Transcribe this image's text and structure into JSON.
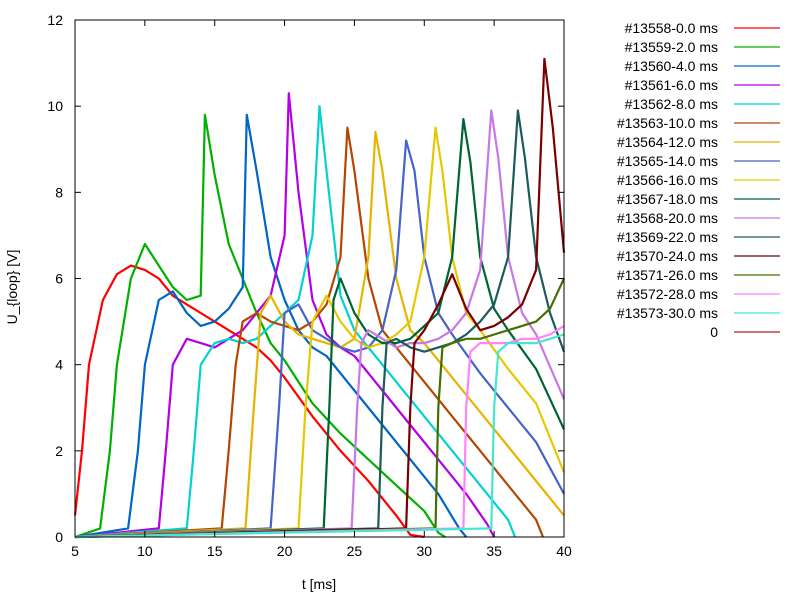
{
  "chart_data": {
    "type": "line",
    "title": "",
    "xlabel": "t [ms]",
    "ylabel": "U_{loop} [V]",
    "xlim": [
      5,
      40
    ],
    "ylim": [
      0,
      12
    ],
    "x_ticks": [
      5,
      10,
      15,
      20,
      25,
      30,
      35,
      40
    ],
    "y_ticks": [
      0,
      2,
      4,
      6,
      8,
      10,
      12
    ],
    "grid": false,
    "legend_position": "outside-right",
    "series": [
      {
        "name": "#13558-0.0 ms",
        "color": "#ff0000",
        "points": [
          [
            5,
            0.5
          ],
          [
            5.5,
            2
          ],
          [
            6,
            4
          ],
          [
            7,
            5.5
          ],
          [
            8,
            6.1
          ],
          [
            9,
            6.3
          ],
          [
            10,
            6.2
          ],
          [
            11,
            6.0
          ],
          [
            12,
            5.6
          ],
          [
            13,
            5.4
          ],
          [
            14,
            5.2
          ],
          [
            15,
            5.0
          ],
          [
            16,
            4.8
          ],
          [
            17,
            4.6
          ],
          [
            18,
            4.4
          ],
          [
            19,
            4.1
          ],
          [
            20,
            3.7
          ],
          [
            22,
            2.8
          ],
          [
            24,
            2.0
          ],
          [
            26,
            1.3
          ],
          [
            28,
            0.5
          ],
          [
            29,
            0.05
          ],
          [
            30,
            0
          ]
        ]
      },
      {
        "name": "#13559-2.0 ms",
        "color": "#00b000",
        "points": [
          [
            5,
            0
          ],
          [
            6.8,
            0.2
          ],
          [
            7.5,
            2
          ],
          [
            8,
            4
          ],
          [
            9,
            6
          ],
          [
            10,
            6.8
          ],
          [
            11,
            6.3
          ],
          [
            12,
            5.8
          ],
          [
            13,
            5.5
          ],
          [
            14,
            5.6
          ],
          [
            14.3,
            9.8
          ],
          [
            15,
            8.4
          ],
          [
            16,
            6.8
          ],
          [
            17,
            6.0
          ],
          [
            18,
            5.2
          ],
          [
            19,
            4.5
          ],
          [
            20,
            4.1
          ],
          [
            21,
            3.6
          ],
          [
            22,
            3.1
          ],
          [
            24,
            2.4
          ],
          [
            26,
            1.8
          ],
          [
            28,
            1.2
          ],
          [
            30,
            0.6
          ],
          [
            31,
            0.1
          ],
          [
            31.5,
            0
          ]
        ]
      },
      {
        "name": "#13560-4.0 ms",
        "color": "#0064c8",
        "points": [
          [
            5,
            0
          ],
          [
            8.8,
            0.2
          ],
          [
            9.5,
            2
          ],
          [
            10,
            4
          ],
          [
            11,
            5.5
          ],
          [
            12,
            5.7
          ],
          [
            13,
            5.2
          ],
          [
            14,
            4.9
          ],
          [
            15,
            5.0
          ],
          [
            16,
            5.3
          ],
          [
            17,
            5.8
          ],
          [
            17.3,
            9.8
          ],
          [
            18,
            8.5
          ],
          [
            19,
            6.5
          ],
          [
            20,
            5.5
          ],
          [
            21,
            4.8
          ],
          [
            22,
            4.4
          ],
          [
            23,
            4.2
          ],
          [
            25,
            3.4
          ],
          [
            27,
            2.6
          ],
          [
            29,
            1.8
          ],
          [
            31,
            1.0
          ],
          [
            32.5,
            0.2
          ],
          [
            33,
            0
          ]
        ]
      },
      {
        "name": "#13561-6.0 ms",
        "color": "#b400e6",
        "points": [
          [
            5,
            0
          ],
          [
            11,
            0.2
          ],
          [
            11.5,
            2
          ],
          [
            12,
            4
          ],
          [
            13,
            4.6
          ],
          [
            14,
            4.5
          ],
          [
            15,
            4.4
          ],
          [
            16,
            4.6
          ],
          [
            17,
            4.8
          ],
          [
            18,
            5.2
          ],
          [
            19,
            5.6
          ],
          [
            20,
            7.0
          ],
          [
            20.3,
            10.3
          ],
          [
            21,
            8.0
          ],
          [
            22,
            5.5
          ],
          [
            23,
            4.7
          ],
          [
            24,
            4.4
          ],
          [
            25,
            4.2
          ],
          [
            27,
            3.4
          ],
          [
            29,
            2.6
          ],
          [
            31,
            1.8
          ],
          [
            33,
            1.0
          ],
          [
            34.5,
            0.3
          ],
          [
            35,
            0
          ]
        ]
      },
      {
        "name": "#13562-8.0 ms",
        "color": "#00d2d2",
        "points": [
          [
            5,
            0
          ],
          [
            13,
            0.2
          ],
          [
            13.5,
            2
          ],
          [
            14,
            4
          ],
          [
            15,
            4.5
          ],
          [
            16,
            4.6
          ],
          [
            17,
            4.5
          ],
          [
            18,
            4.6
          ],
          [
            19,
            4.9
          ],
          [
            20,
            5.2
          ],
          [
            21,
            5.5
          ],
          [
            22,
            7.0
          ],
          [
            22.5,
            10.0
          ],
          [
            23,
            8.5
          ],
          [
            24,
            5.6
          ],
          [
            25,
            4.8
          ],
          [
            26,
            4.4
          ],
          [
            28,
            3.6
          ],
          [
            30,
            2.8
          ],
          [
            32,
            2.0
          ],
          [
            34,
            1.2
          ],
          [
            36,
            0.4
          ],
          [
            36.5,
            0
          ]
        ]
      },
      {
        "name": "#13563-10.0 ms",
        "color": "#b44600",
        "points": [
          [
            5,
            0
          ],
          [
            15.5,
            0.2
          ],
          [
            16,
            2
          ],
          [
            16.5,
            4
          ],
          [
            17,
            5.0
          ],
          [
            18,
            5.2
          ],
          [
            19,
            5.0
          ],
          [
            20,
            4.9
          ],
          [
            21,
            4.8
          ],
          [
            22,
            5.0
          ],
          [
            23,
            5.4
          ],
          [
            24,
            6.5
          ],
          [
            24.5,
            9.5
          ],
          [
            25,
            8.5
          ],
          [
            26,
            6.0
          ],
          [
            27,
            4.8
          ],
          [
            28,
            4.4
          ],
          [
            30,
            3.6
          ],
          [
            32,
            2.8
          ],
          [
            34,
            2.0
          ],
          [
            36,
            1.2
          ],
          [
            38,
            0.4
          ],
          [
            38.5,
            0
          ]
        ]
      },
      {
        "name": "#13564-12.0 ms",
        "color": "#e6b400",
        "points": [
          [
            5,
            0
          ],
          [
            17.2,
            0.2
          ],
          [
            17.8,
            3
          ],
          [
            18.3,
            5.2
          ],
          [
            19,
            5.6
          ],
          [
            20,
            5.0
          ],
          [
            21,
            4.7
          ],
          [
            22,
            4.6
          ],
          [
            23,
            4.5
          ],
          [
            24,
            4.4
          ],
          [
            25,
            4.6
          ],
          [
            26,
            6.5
          ],
          [
            26.5,
            9.4
          ],
          [
            27,
            8.5
          ],
          [
            28,
            6.0
          ],
          [
            29,
            4.8
          ],
          [
            30,
            4.5
          ],
          [
            32,
            3.7
          ],
          [
            34,
            2.9
          ],
          [
            36,
            2.1
          ],
          [
            38,
            1.3
          ],
          [
            40,
            0.5
          ]
        ]
      },
      {
        "name": "#13565-14.0 ms",
        "color": "#4664c8",
        "points": [
          [
            5,
            0
          ],
          [
            19,
            0.2
          ],
          [
            19.6,
            3
          ],
          [
            20,
            5.2
          ],
          [
            21,
            5.4
          ],
          [
            22,
            4.8
          ],
          [
            23,
            4.6
          ],
          [
            24,
            4.4
          ],
          [
            25,
            4.3
          ],
          [
            26,
            4.4
          ],
          [
            27,
            4.8
          ],
          [
            28,
            6.2
          ],
          [
            28.7,
            9.2
          ],
          [
            29.3,
            8.5
          ],
          [
            30,
            6.5
          ],
          [
            31,
            5.2
          ],
          [
            32,
            4.7
          ],
          [
            34,
            3.8
          ],
          [
            36,
            3.0
          ],
          [
            38,
            2.2
          ],
          [
            40,
            1.0
          ]
        ]
      },
      {
        "name": "#13566-16.0 ms",
        "color": "#e6c800",
        "points": [
          [
            5,
            0
          ],
          [
            21,
            0.2
          ],
          [
            21.5,
            3
          ],
          [
            22,
            5.0
          ],
          [
            23,
            5.6
          ],
          [
            24,
            5.0
          ],
          [
            25,
            4.6
          ],
          [
            26,
            4.4
          ],
          [
            27,
            4.5
          ],
          [
            28,
            4.7
          ],
          [
            29,
            5.0
          ],
          [
            30,
            6.5
          ],
          [
            30.8,
            9.5
          ],
          [
            31.3,
            8.5
          ],
          [
            32,
            6.5
          ],
          [
            33,
            5.2
          ],
          [
            34,
            4.8
          ],
          [
            36,
            3.9
          ],
          [
            38,
            3.1
          ],
          [
            40,
            1.5
          ]
        ]
      },
      {
        "name": "#13567-18.0 ms",
        "color": "#006432",
        "points": [
          [
            5,
            0
          ],
          [
            22.8,
            0.2
          ],
          [
            23.2,
            3
          ],
          [
            23.5,
            5.5
          ],
          [
            24,
            6.0
          ],
          [
            25,
            5.2
          ],
          [
            26,
            4.7
          ],
          [
            27,
            4.5
          ],
          [
            28,
            4.5
          ],
          [
            29,
            4.6
          ],
          [
            30,
            4.9
          ],
          [
            31,
            5.2
          ],
          [
            32,
            6.5
          ],
          [
            32.8,
            9.7
          ],
          [
            33.3,
            8.7
          ],
          [
            34,
            6.5
          ],
          [
            35,
            5.3
          ],
          [
            36,
            4.8
          ],
          [
            38,
            3.9
          ],
          [
            40,
            2.5
          ]
        ]
      },
      {
        "name": "#13568-20.0 ms",
        "color": "#c878e6",
        "points": [
          [
            5,
            0
          ],
          [
            24.8,
            0.2
          ],
          [
            25.2,
            3
          ],
          [
            25.5,
            4.5
          ],
          [
            26,
            4.8
          ],
          [
            27,
            4.6
          ],
          [
            28,
            4.4
          ],
          [
            29,
            4.5
          ],
          [
            30,
            4.5
          ],
          [
            31,
            4.6
          ],
          [
            32,
            4.8
          ],
          [
            33,
            5.2
          ],
          [
            34,
            6.2
          ],
          [
            34.8,
            9.9
          ],
          [
            35.3,
            8.8
          ],
          [
            36,
            6.5
          ],
          [
            37,
            5.2
          ],
          [
            38,
            4.7
          ],
          [
            40,
            3.2
          ]
        ]
      },
      {
        "name": "#13569-22.0 ms",
        "color": "#1e5a5a",
        "points": [
          [
            5,
            0
          ],
          [
            26.7,
            0.2
          ],
          [
            27,
            3
          ],
          [
            27.3,
            4.5
          ],
          [
            28,
            4.6
          ],
          [
            29,
            4.4
          ],
          [
            30,
            4.3
          ],
          [
            31,
            4.4
          ],
          [
            32,
            4.5
          ],
          [
            33,
            4.7
          ],
          [
            34,
            5.0
          ],
          [
            35,
            5.4
          ],
          [
            36,
            6.5
          ],
          [
            36.7,
            9.9
          ],
          [
            37.2,
            8.8
          ],
          [
            38,
            6.5
          ],
          [
            39,
            5.2
          ],
          [
            40,
            4.3
          ]
        ]
      },
      {
        "name": "#13570-24.0 ms",
        "color": "#780000",
        "points": [
          [
            5,
            0
          ],
          [
            28.7,
            0.2
          ],
          [
            29,
            3
          ],
          [
            29.3,
            4.5
          ],
          [
            30,
            4.8
          ],
          [
            31,
            5.4
          ],
          [
            32,
            6.1
          ],
          [
            33,
            5.3
          ],
          [
            34,
            4.8
          ],
          [
            35,
            4.9
          ],
          [
            36,
            5.1
          ],
          [
            37,
            5.4
          ],
          [
            38,
            6.2
          ],
          [
            38.6,
            11.1
          ],
          [
            39.2,
            9.5
          ],
          [
            40,
            6.6
          ]
        ]
      },
      {
        "name": "#13571-26.0 ms",
        "color": "#466e00",
        "points": [
          [
            5,
            0
          ],
          [
            30.8,
            0.2
          ],
          [
            31,
            3
          ],
          [
            31.3,
            4.4
          ],
          [
            32,
            4.5
          ],
          [
            33,
            4.6
          ],
          [
            34,
            4.6
          ],
          [
            35,
            4.7
          ],
          [
            36,
            4.8
          ],
          [
            37,
            4.9
          ],
          [
            38,
            5.0
          ],
          [
            39,
            5.3
          ],
          [
            40,
            6.0
          ]
        ]
      },
      {
        "name": "#13572-28.0 ms",
        "color": "#ff82ff",
        "points": [
          [
            5,
            0
          ],
          [
            32.8,
            0.2
          ],
          [
            33,
            3
          ],
          [
            33.3,
            4.3
          ],
          [
            34,
            4.5
          ],
          [
            35,
            4.5
          ],
          [
            36,
            4.5
          ],
          [
            37,
            4.6
          ],
          [
            38,
            4.6
          ],
          [
            39,
            4.7
          ],
          [
            40,
            4.9
          ]
        ]
      },
      {
        "name": "#13573-30.0 ms",
        "color": "#46e6d2",
        "points": [
          [
            5,
            0
          ],
          [
            34.8,
            0.2
          ],
          [
            35,
            3
          ],
          [
            35.3,
            4.3
          ],
          [
            36,
            4.5
          ],
          [
            37,
            4.5
          ],
          [
            38,
            4.5
          ],
          [
            39,
            4.6
          ],
          [
            40,
            4.7
          ]
        ]
      },
      {
        "name": "0",
        "color": "#b41e1e",
        "points": []
      }
    ]
  }
}
